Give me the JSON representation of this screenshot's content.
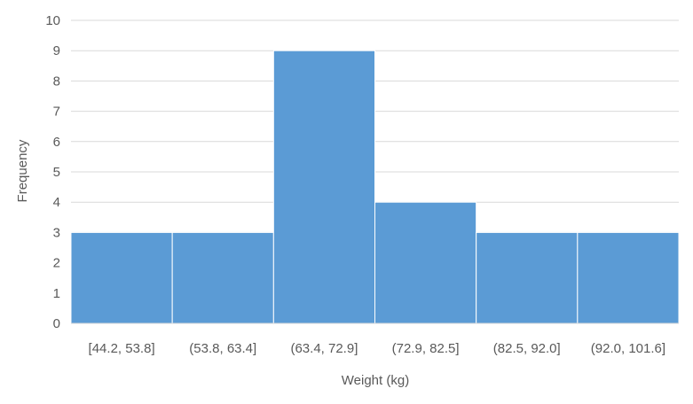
{
  "chart_data": {
    "type": "bar",
    "title": "",
    "xlabel": "Weight (kg)",
    "ylabel": "Frequency",
    "categories": [
      "[44.2, 53.8]",
      "(53.8, 63.4]",
      "(63.4, 72.9]",
      "(72.9, 82.5]",
      "(82.5, 92.0]",
      "(92.0, 101.6]"
    ],
    "values": [
      3,
      3,
      9,
      4,
      3,
      3
    ],
    "ylim": [
      0,
      10
    ],
    "yticks": [
      "0",
      "1",
      "2",
      "3",
      "4",
      "5",
      "6",
      "7",
      "8",
      "9",
      "10"
    ],
    "grid": true,
    "legend": "none",
    "bar_color": "#5B9BD5",
    "grid_color": "#D9D9D9"
  }
}
